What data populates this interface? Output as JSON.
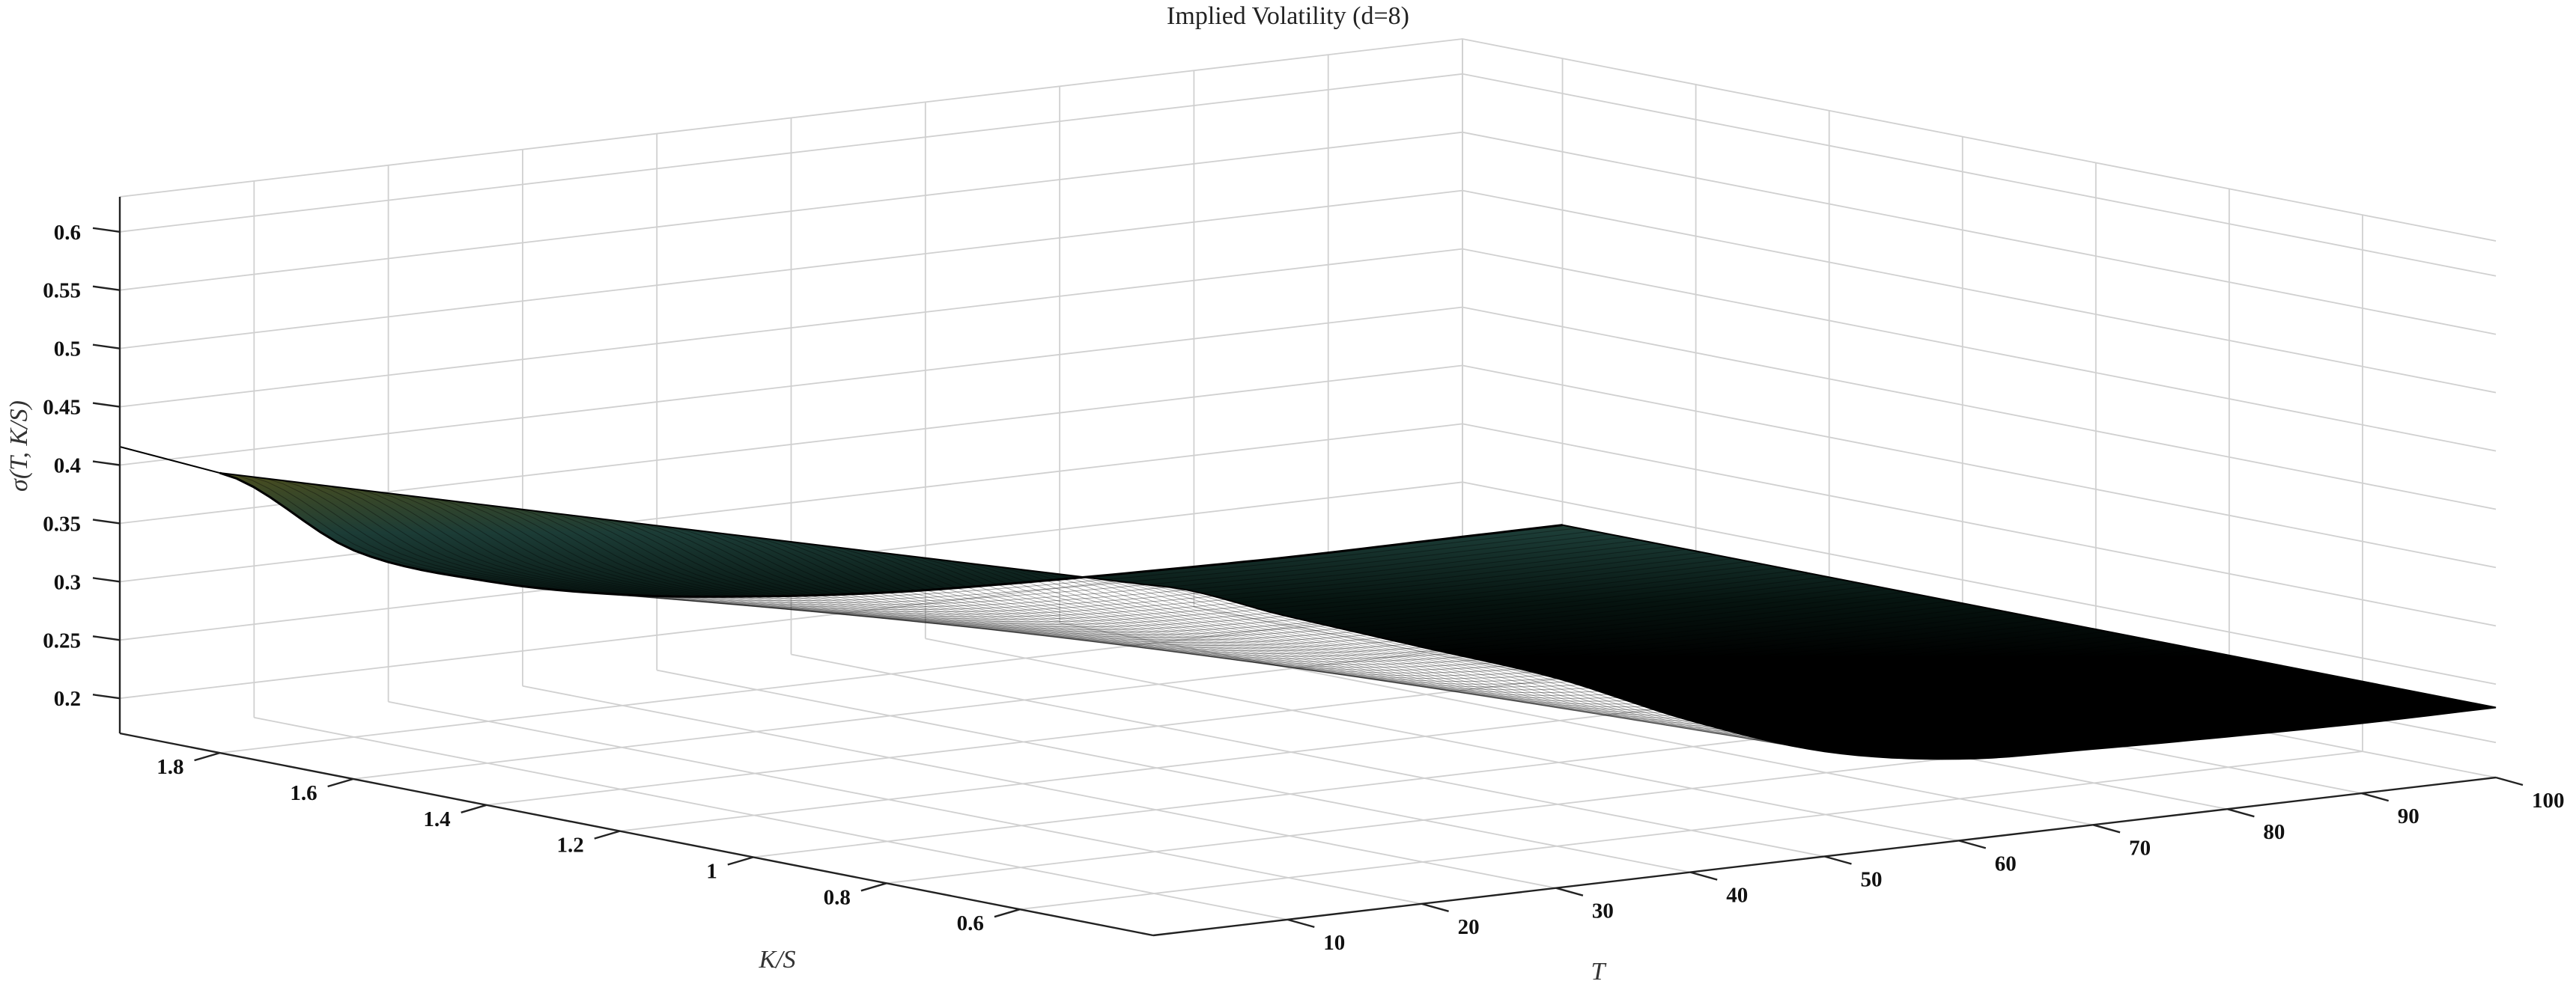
{
  "chart_data": {
    "type": "surface",
    "title": "Implied Volatility (d=8)",
    "xlabel": "T",
    "ylabel": "K/S",
    "zlabel": "σ(T, K/S)",
    "x_ticks": [
      10,
      20,
      30,
      40,
      50,
      60,
      70,
      80,
      90,
      100
    ],
    "y_ticks": [
      "1.8",
      "1.6",
      "1.4",
      "1.2",
      "1",
      "0.8",
      "0.6"
    ],
    "z_ticks": [
      "0.6",
      "0.55",
      "0.5",
      "0.45",
      "0.4",
      "0.35",
      "0.3",
      "0.25",
      "0.2"
    ],
    "xlim": [
      0,
      100
    ],
    "ylim": [
      0.4,
      1.95
    ],
    "zlim": [
      0.17,
      0.63
    ],
    "grid": true,
    "surface": {
      "T": [
        0,
        10,
        20,
        30,
        40,
        50,
        60,
        70,
        80,
        90,
        100
      ],
      "K_over_S": [
        0.4,
        1.8
      ],
      "sigma_at_low_K": [
        0.47,
        0.43,
        0.39,
        0.35,
        0.3,
        0.26,
        0.24,
        0.235,
        0.232,
        0.23,
        0.23
      ],
      "sigma_at_high_K": [
        0.41,
        0.33,
        0.29,
        0.265,
        0.25,
        0.24,
        0.235,
        0.232,
        0.23,
        0.23,
        0.23
      ]
    }
  }
}
